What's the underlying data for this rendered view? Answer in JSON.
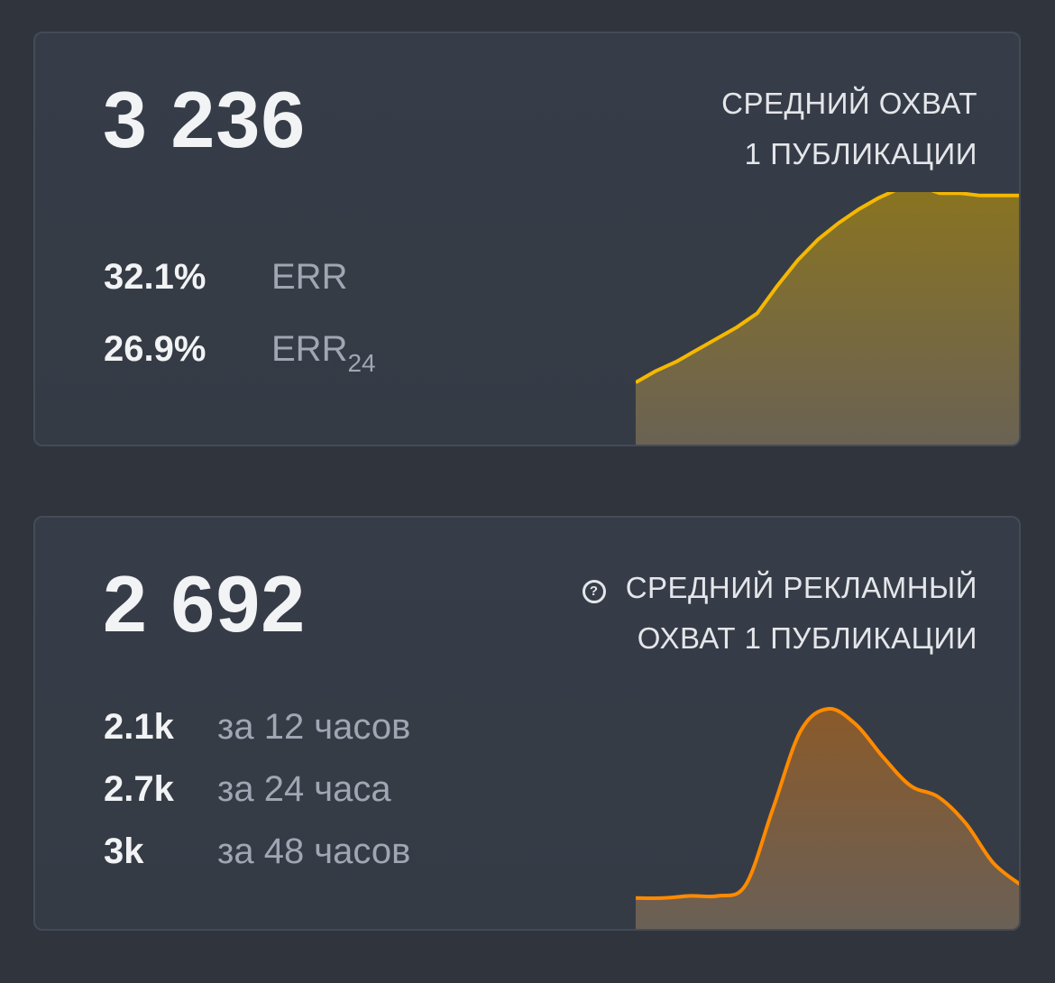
{
  "reach_card": {
    "value": "3 236",
    "title_line1": "СРЕДНИЙ ОХВАТ",
    "title_line2": "1 ПУБЛИКАЦИИ",
    "stats": [
      {
        "value": "32.1%",
        "label": "ERR",
        "sub": ""
      },
      {
        "value": "26.9%",
        "label": "ERR",
        "sub": "24"
      }
    ],
    "chart_data": {
      "type": "area",
      "color": "#f5b800",
      "values": [
        0.23,
        0.28,
        0.32,
        0.37,
        0.42,
        0.47,
        0.53,
        0.65,
        0.76,
        0.85,
        0.92,
        0.98,
        1.03,
        1.07,
        1.08,
        1.05,
        1.05,
        1.04,
        1.04,
        1.04
      ]
    }
  },
  "ad_reach_card": {
    "value": "2 692",
    "title_line1": "СРЕДНИЙ РЕКЛАМНЫЙ",
    "title_line2": "ОХВАТ 1 ПУБЛИКАЦИИ",
    "help_icon_glyph": "?",
    "stats": [
      {
        "value": "2.1k",
        "label": "за 12 часов"
      },
      {
        "value": "2.7k",
        "label": "за 24 часа"
      },
      {
        "value": "3k",
        "label": "за 48 часов"
      }
    ],
    "chart_data": {
      "type": "area",
      "color": "#ff8a00",
      "values": [
        0.14,
        0.14,
        0.15,
        0.15,
        0.2,
        0.55,
        0.9,
        1.0,
        0.93,
        0.78,
        0.65,
        0.6,
        0.48,
        0.3,
        0.2
      ]
    }
  }
}
